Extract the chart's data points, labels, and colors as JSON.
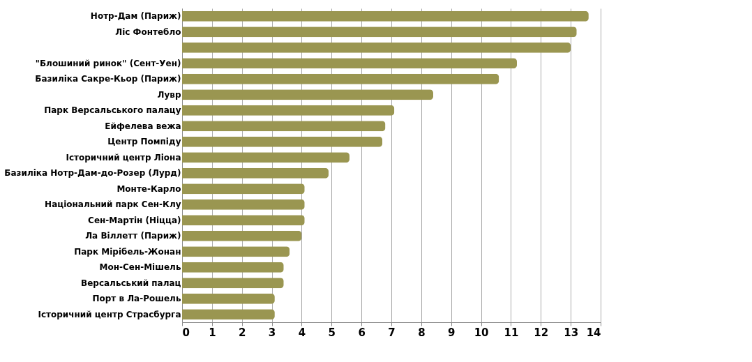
{
  "chart_data": {
    "type": "bar",
    "orientation": "horizontal",
    "categories": [
      "Нотр-Дам (Париж)",
      "Ліс Фонтебло",
      null,
      "\"Блошиний ринок\" (Сент-Уен)",
      "Базиліка Сакре-Кьор (Париж)",
      "Лувр",
      "Парк Версальського палацу",
      "Ейфелева вежа",
      "Центр Помпіду",
      "Історичний центр Ліона",
      "Базиліка Нотр-Дам-до-Розер (Лурд)",
      "Монте-Карло",
      "Національний парк Сен-Клу",
      "Сен-Мартін (Ніцца)",
      "Ла Віллетт (Париж)",
      "Парк Мірібель-Жонан",
      "Мон-Сен-Мішель",
      "Версальський палац",
      "Порт в Ла-Рошель",
      "Історичний центр Страсбурга"
    ],
    "values": [
      13.6,
      13.2,
      13.0,
      11.2,
      10.6,
      8.4,
      7.1,
      6.8,
      6.7,
      5.6,
      4.9,
      4.1,
      4.1,
      4.1,
      4.0,
      3.6,
      3.4,
      3.4,
      3.1,
      3.1
    ],
    "color": "#9a9651",
    "xlim": [
      0,
      14
    ],
    "xticks": [
      0,
      1,
      2,
      3,
      4,
      5,
      6,
      7,
      8,
      9,
      10,
      11,
      12,
      13,
      14
    ],
    "grid": "x"
  }
}
